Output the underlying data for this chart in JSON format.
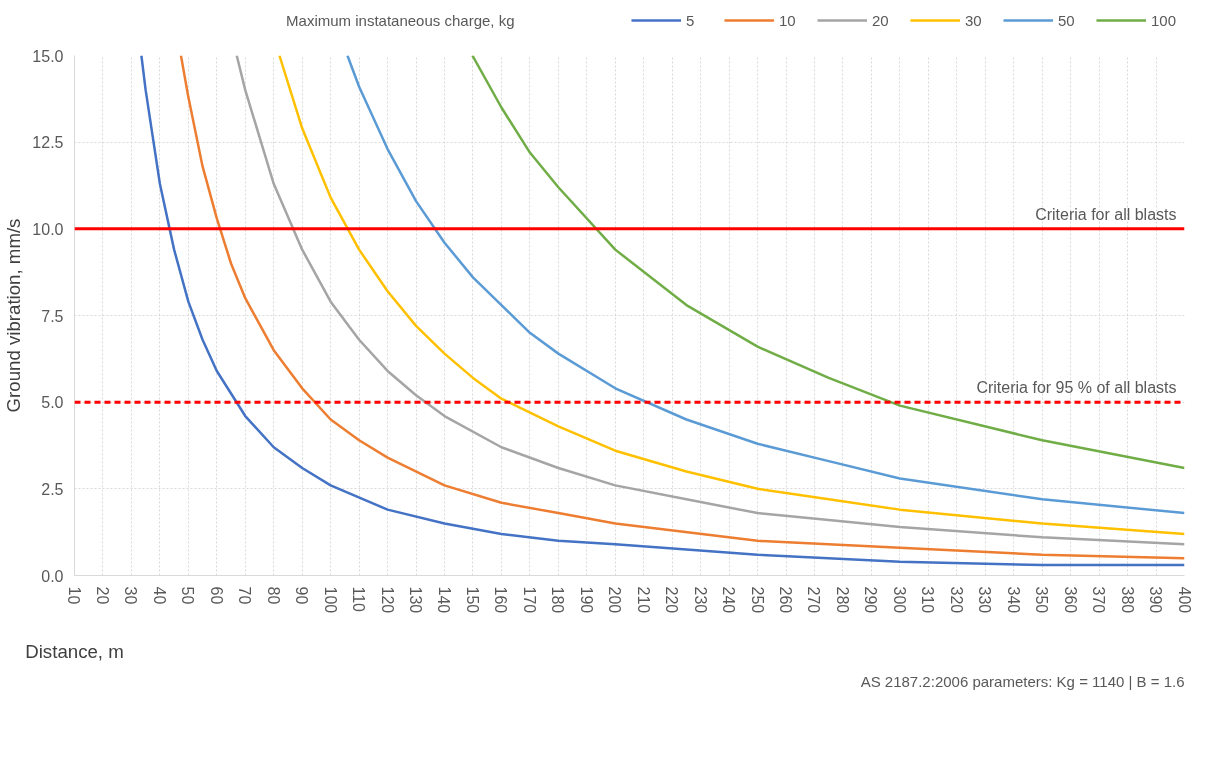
{
  "chart_data": {
    "type": "line",
    "xlabel": "Distance, m",
    "ylabel": "Ground vibration, mm/s",
    "legend_title": "Maximum instataneous charge, kg",
    "xlim": [
      10,
      400
    ],
    "xticks": [
      10,
      20,
      30,
      40,
      50,
      60,
      70,
      80,
      90,
      100,
      110,
      120,
      130,
      140,
      150,
      160,
      170,
      180,
      190,
      200,
      210,
      220,
      230,
      240,
      250,
      260,
      270,
      280,
      290,
      300,
      310,
      320,
      330,
      340,
      350,
      360,
      370,
      380,
      390,
      400
    ],
    "ylim": [
      0,
      15
    ],
    "yticks": [
      {
        "value": 0,
        "label": "0.0"
      },
      {
        "value": 2.5,
        "label": "2.5"
      },
      {
        "value": 5,
        "label": "5.0"
      },
      {
        "value": 7.5,
        "label": "7.5"
      },
      {
        "value": 10,
        "label": "10.0"
      },
      {
        "value": 12.5,
        "label": "12.5"
      },
      {
        "value": 15,
        "label": "15.0"
      }
    ],
    "grid": true,
    "legend": "top",
    "marker": "none",
    "line_style": "solid",
    "series": [
      {
        "name": "5",
        "color": "#4472c4",
        "x": [
          33.5,
          35,
          40,
          45,
          50,
          55,
          60,
          70,
          80,
          90,
          100,
          120,
          140,
          160,
          180,
          200,
          250,
          300,
          350,
          400
        ],
        "values": [
          15,
          14.0,
          11.3,
          9.4,
          7.9,
          6.8,
          5.9,
          4.6,
          3.7,
          3.1,
          2.6,
          1.9,
          1.5,
          1.2,
          1.0,
          0.9,
          0.6,
          0.4,
          0.3,
          0.3
        ]
      },
      {
        "name": "10",
        "color": "#ed7d31",
        "x": [
          47.4,
          50,
          55,
          60,
          65,
          70,
          80,
          90,
          100,
          110,
          120,
          140,
          160,
          180,
          200,
          250,
          300,
          350,
          400
        ],
        "values": [
          15,
          13.8,
          11.8,
          10.3,
          9.0,
          8.0,
          6.5,
          5.4,
          4.5,
          3.9,
          3.4,
          2.6,
          2.1,
          1.8,
          1.5,
          1.0,
          0.8,
          0.6,
          0.5
        ]
      },
      {
        "name": "20",
        "color": "#a5a5a5",
        "x": [
          67.0,
          70,
          80,
          90,
          100,
          110,
          120,
          130,
          140,
          160,
          180,
          200,
          225,
          250,
          275,
          300,
          350,
          400
        ],
        "values": [
          15,
          14.0,
          11.3,
          9.4,
          7.9,
          6.8,
          5.9,
          5.2,
          4.6,
          3.7,
          3.1,
          2.6,
          2.2,
          1.8,
          1.6,
          1.4,
          1.1,
          0.9
        ]
      },
      {
        "name": "30",
        "color": "#ffc000",
        "x": [
          82.0,
          90,
          100,
          110,
          120,
          130,
          140,
          150,
          160,
          180,
          200,
          225,
          250,
          275,
          300,
          350,
          400
        ],
        "values": [
          15,
          12.9,
          10.9,
          9.4,
          8.2,
          7.2,
          6.4,
          5.7,
          5.1,
          4.3,
          3.6,
          3.0,
          2.5,
          2.2,
          1.9,
          1.5,
          1.2
        ]
      },
      {
        "name": "50",
        "color": "#5b9bd5",
        "x": [
          105.9,
          110,
          120,
          130,
          140,
          150,
          160,
          170,
          180,
          200,
          225,
          250,
          275,
          300,
          350,
          400
        ],
        "values": [
          15,
          14.1,
          12.3,
          10.8,
          9.6,
          8.6,
          7.8,
          7.0,
          6.4,
          5.4,
          4.5,
          3.8,
          3.3,
          2.8,
          2.2,
          1.8
        ]
      },
      {
        "name": "100",
        "color": "#70ad47",
        "x": [
          149.8,
          160,
          170,
          180,
          200,
          225,
          250,
          275,
          300,
          350,
          400
        ],
        "values": [
          15,
          13.5,
          12.2,
          11.2,
          9.4,
          7.8,
          6.6,
          5.7,
          4.9,
          3.9,
          3.1
        ]
      }
    ],
    "ref_lines": [
      {
        "axis": "y",
        "value": 10,
        "label": "Criteria for all blasts",
        "color": "#ff0000",
        "line_style": "solid"
      },
      {
        "axis": "y",
        "value": 5,
        "label": "Criteria for 95 % of all blasts",
        "color": "#ff0000",
        "line_style": "dashed"
      }
    ],
    "annotations": [
      "AS 2187.2:2006 parameters: Kg = 1140 | B = 1.6"
    ]
  }
}
